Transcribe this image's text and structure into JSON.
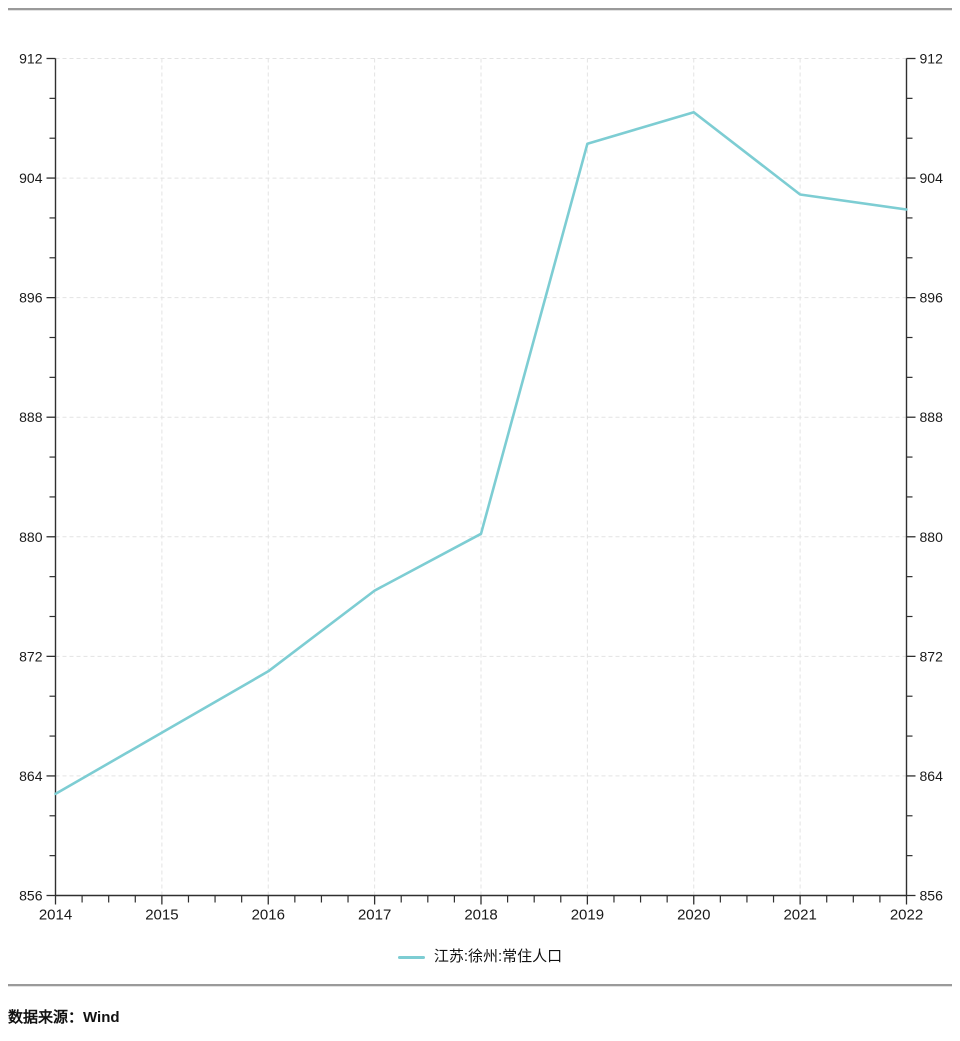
{
  "colors": {
    "line": "#7DCDD3",
    "axis": "#2f2f2f",
    "grid": "#e3e3e3",
    "tick_label": "#1a1a1a",
    "rule": "#9a9a9a"
  },
  "chart_data": {
    "type": "line",
    "title": "",
    "xlabel": "",
    "ylabel": "",
    "x": [
      2014,
      2015,
      2016,
      2017,
      2018,
      2019,
      2020,
      2021,
      2022
    ],
    "series": [
      {
        "name": "江苏:徐州:常住人口",
        "values": [
          862.8,
          866.9,
          871.0,
          876.4,
          880.2,
          906.3,
          908.4,
          902.9,
          901.9
        ],
        "color": "#7DCDD3"
      }
    ],
    "ylim": [
      856,
      912
    ],
    "yticks": [
      856,
      864,
      872,
      880,
      888,
      896,
      904,
      912
    ],
    "xticks": [
      2014,
      2015,
      2016,
      2017,
      2018,
      2019,
      2020,
      2021,
      2022
    ],
    "y_minor_ticks_per_interval": 2,
    "x_minor_ticks_per_interval": 3,
    "grid": true,
    "grid_style": "dashed",
    "dual_y_axis": true,
    "legend_position": "bottom-center"
  },
  "legend": {
    "label": "江苏:徐州:常住人口"
  },
  "footer": {
    "source": "数据来源：Wind"
  }
}
